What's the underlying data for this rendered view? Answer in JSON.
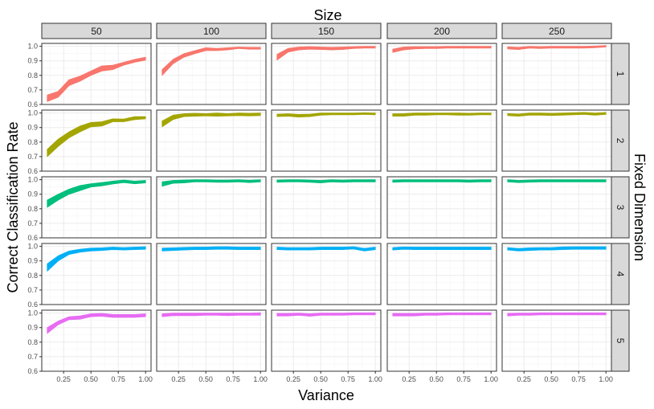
{
  "chart_data": {
    "type": "line",
    "title": "Size",
    "xlabel": "Variance",
    "ylabel": "Correct Classification Rate",
    "row_title": "Fixed Dimension",
    "col_facets": [
      "50",
      "100",
      "150",
      "200",
      "250"
    ],
    "row_facets": [
      "1",
      "2",
      "3",
      "4",
      "5"
    ],
    "x": [
      0.1,
      0.2,
      0.3,
      0.4,
      0.5,
      0.6,
      0.7,
      0.8,
      0.9,
      1.0
    ],
    "xlim": [
      0.05,
      1.05
    ],
    "ylim": [
      0.6,
      1.02
    ],
    "x_ticks": [
      "0.25",
      "0.50",
      "0.75",
      "1.00"
    ],
    "y_ticks": [
      "0.6",
      "0.7",
      "0.8",
      "0.9",
      "1.0"
    ],
    "grid": true,
    "row_colors": [
      "#F8766D",
      "#A3A500",
      "#00BF7D",
      "#00B0F6",
      "#E76BF3"
    ],
    "panels": [
      [
        {
          "lower": [
            0.62,
            0.65,
            0.73,
            0.76,
            0.8,
            0.83,
            0.84,
            0.87,
            0.89,
            0.905
          ],
          "upper": [
            0.665,
            0.69,
            0.77,
            0.795,
            0.83,
            0.865,
            0.87,
            0.89,
            0.91,
            0.925
          ]
        },
        {
          "lower": [
            0.8,
            0.88,
            0.925,
            0.95,
            0.97,
            0.97,
            0.975,
            0.985,
            0.98,
            0.98
          ],
          "upper": [
            0.84,
            0.91,
            0.95,
            0.97,
            0.99,
            0.985,
            0.99,
            0.995,
            0.993,
            0.993
          ]
        },
        {
          "lower": [
            0.905,
            0.96,
            0.975,
            0.98,
            0.978,
            0.975,
            0.978,
            0.985,
            0.988,
            0.988
          ],
          "upper": [
            0.945,
            0.985,
            0.995,
            0.998,
            0.995,
            0.993,
            0.995,
            0.998,
            1.0,
            1.0
          ]
        },
        {
          "lower": [
            0.958,
            0.975,
            0.982,
            0.985,
            0.985,
            0.988,
            0.988,
            0.988,
            0.988,
            0.988
          ],
          "upper": [
            0.98,
            0.995,
            0.998,
            0.998,
            0.998,
            1.0,
            1.0,
            1.0,
            1.0,
            1.0
          ]
        },
        {
          "lower": [
            0.982,
            0.978,
            0.988,
            0.985,
            0.988,
            0.988,
            0.988,
            0.988,
            0.99,
            0.995
          ],
          "upper": [
            0.996,
            0.993,
            1.0,
            0.998,
            1.0,
            1.0,
            1.0,
            1.0,
            1.002,
            1.005
          ]
        }
      ],
      [
        {
          "lower": [
            0.7,
            0.77,
            0.83,
            0.87,
            0.905,
            0.91,
            0.94,
            0.94,
            0.955,
            0.96
          ],
          "upper": [
            0.75,
            0.82,
            0.87,
            0.91,
            0.935,
            0.94,
            0.96,
            0.958,
            0.975,
            0.975
          ]
        },
        {
          "lower": [
            0.905,
            0.955,
            0.975,
            0.978,
            0.98,
            0.978,
            0.98,
            0.982,
            0.98,
            0.982
          ],
          "upper": [
            0.945,
            0.985,
            0.995,
            0.998,
            0.995,
            1.0,
            0.995,
            1.0,
            0.998,
            1.0
          ]
        },
        {
          "lower": [
            0.975,
            0.978,
            0.972,
            0.975,
            0.985,
            0.988,
            0.988,
            0.988,
            0.99,
            0.988
          ],
          "upper": [
            0.992,
            0.995,
            0.99,
            0.992,
            1.0,
            1.0,
            1.0,
            1.0,
            1.002,
            1.0
          ]
        },
        {
          "lower": [
            0.978,
            0.978,
            0.985,
            0.985,
            0.988,
            0.988,
            0.985,
            0.985,
            0.988,
            0.988
          ],
          "upper": [
            0.995,
            0.995,
            1.0,
            1.0,
            1.0,
            1.0,
            1.0,
            0.998,
            1.0,
            1.0
          ]
        },
        {
          "lower": [
            0.982,
            0.978,
            0.985,
            0.985,
            0.983,
            0.985,
            0.988,
            0.99,
            0.985,
            0.99
          ],
          "upper": [
            0.996,
            0.993,
            1.0,
            1.0,
            0.998,
            1.0,
            1.002,
            1.004,
            1.0,
            1.004
          ]
        }
      ],
      [
        {
          "lower": [
            0.81,
            0.86,
            0.9,
            0.925,
            0.95,
            0.958,
            0.97,
            0.98,
            0.972,
            0.978
          ],
          "upper": [
            0.86,
            0.9,
            0.935,
            0.96,
            0.972,
            0.98,
            0.99,
            0.998,
            0.99,
            0.995
          ]
        },
        {
          "lower": [
            0.955,
            0.975,
            0.978,
            0.985,
            0.985,
            0.982,
            0.982,
            0.985,
            0.98,
            0.985
          ],
          "upper": [
            0.985,
            0.995,
            0.998,
            1.0,
            1.0,
            0.998,
            0.998,
            1.0,
            0.996,
            1.0
          ]
        },
        {
          "lower": [
            0.982,
            0.985,
            0.985,
            0.982,
            0.978,
            0.985,
            0.982,
            0.985,
            0.985,
            0.985
          ],
          "upper": [
            0.998,
            1.0,
            1.0,
            0.998,
            0.995,
            1.0,
            0.998,
            1.0,
            1.0,
            1.0
          ]
        },
        {
          "lower": [
            0.982,
            0.985,
            0.985,
            0.985,
            0.985,
            0.985,
            0.985,
            0.982,
            0.985,
            0.985
          ],
          "upper": [
            0.998,
            1.0,
            1.0,
            1.0,
            1.0,
            1.0,
            1.0,
            0.998,
            1.0,
            1.0
          ]
        },
        {
          "lower": [
            0.985,
            0.98,
            0.983,
            0.985,
            0.985,
            0.985,
            0.985,
            0.985,
            0.985,
            0.985
          ],
          "upper": [
            1.0,
            0.995,
            0.998,
            1.0,
            1.0,
            1.0,
            1.0,
            1.0,
            1.0,
            1.0
          ]
        }
      ],
      [
        {
          "lower": [
            0.83,
            0.9,
            0.945,
            0.96,
            0.968,
            0.972,
            0.978,
            0.975,
            0.978,
            0.98
          ],
          "upper": [
            0.88,
            0.935,
            0.968,
            0.98,
            0.988,
            0.99,
            0.995,
            0.992,
            0.995,
            0.998
          ]
        },
        {
          "lower": [
            0.968,
            0.972,
            0.975,
            0.978,
            0.978,
            0.98,
            0.98,
            0.978,
            0.978,
            0.978
          ],
          "upper": [
            0.988,
            0.99,
            0.993,
            0.995,
            0.995,
            0.998,
            0.998,
            0.995,
            0.995,
            0.995
          ]
        },
        {
          "lower": [
            0.978,
            0.975,
            0.975,
            0.975,
            0.978,
            0.978,
            0.978,
            0.982,
            0.968,
            0.978
          ],
          "upper": [
            0.995,
            0.992,
            0.992,
            0.992,
            0.995,
            0.995,
            0.995,
            0.998,
            0.986,
            0.995
          ]
        },
        {
          "lower": [
            0.975,
            0.98,
            0.978,
            0.978,
            0.978,
            0.978,
            0.978,
            0.978,
            0.978,
            0.978
          ],
          "upper": [
            0.992,
            0.996,
            0.995,
            0.995,
            0.995,
            0.995,
            0.995,
            0.995,
            0.995,
            0.995
          ]
        },
        {
          "lower": [
            0.975,
            0.968,
            0.972,
            0.975,
            0.975,
            0.978,
            0.98,
            0.98,
            0.98,
            0.98
          ],
          "upper": [
            0.992,
            0.985,
            0.99,
            0.992,
            0.992,
            0.996,
            0.998,
            0.998,
            0.998,
            0.998
          ]
        }
      ],
      [
        {
          "lower": [
            0.86,
            0.92,
            0.955,
            0.958,
            0.975,
            0.978,
            0.97,
            0.97,
            0.97,
            0.975
          ],
          "upper": [
            0.9,
            0.945,
            0.975,
            0.98,
            0.995,
            0.998,
            0.99,
            0.99,
            0.99,
            0.995
          ]
        },
        {
          "lower": [
            0.975,
            0.982,
            0.982,
            0.982,
            0.985,
            0.985,
            0.982,
            0.985,
            0.985,
            0.985
          ],
          "upper": [
            0.995,
            1.0,
            1.0,
            1.0,
            1.0,
            1.0,
            1.0,
            1.0,
            1.0,
            1.002
          ]
        },
        {
          "lower": [
            0.98,
            0.98,
            0.985,
            0.978,
            0.985,
            0.985,
            0.985,
            0.988,
            0.988,
            0.988
          ],
          "upper": [
            0.998,
            0.998,
            1.0,
            0.995,
            1.0,
            1.0,
            1.0,
            1.002,
            1.002,
            1.002
          ]
        },
        {
          "lower": [
            0.98,
            0.98,
            0.98,
            0.985,
            0.985,
            0.988,
            0.988,
            0.988,
            0.988,
            0.988
          ],
          "upper": [
            0.998,
            0.998,
            0.998,
            1.0,
            1.0,
            1.002,
            1.002,
            1.002,
            1.002,
            1.002
          ]
        },
        {
          "lower": [
            0.98,
            0.985,
            0.985,
            0.988,
            0.988,
            0.988,
            0.988,
            0.988,
            0.988,
            0.988
          ],
          "upper": [
            0.998,
            1.0,
            1.0,
            1.002,
            1.002,
            1.002,
            1.002,
            1.002,
            1.002,
            1.002
          ]
        }
      ]
    ]
  }
}
